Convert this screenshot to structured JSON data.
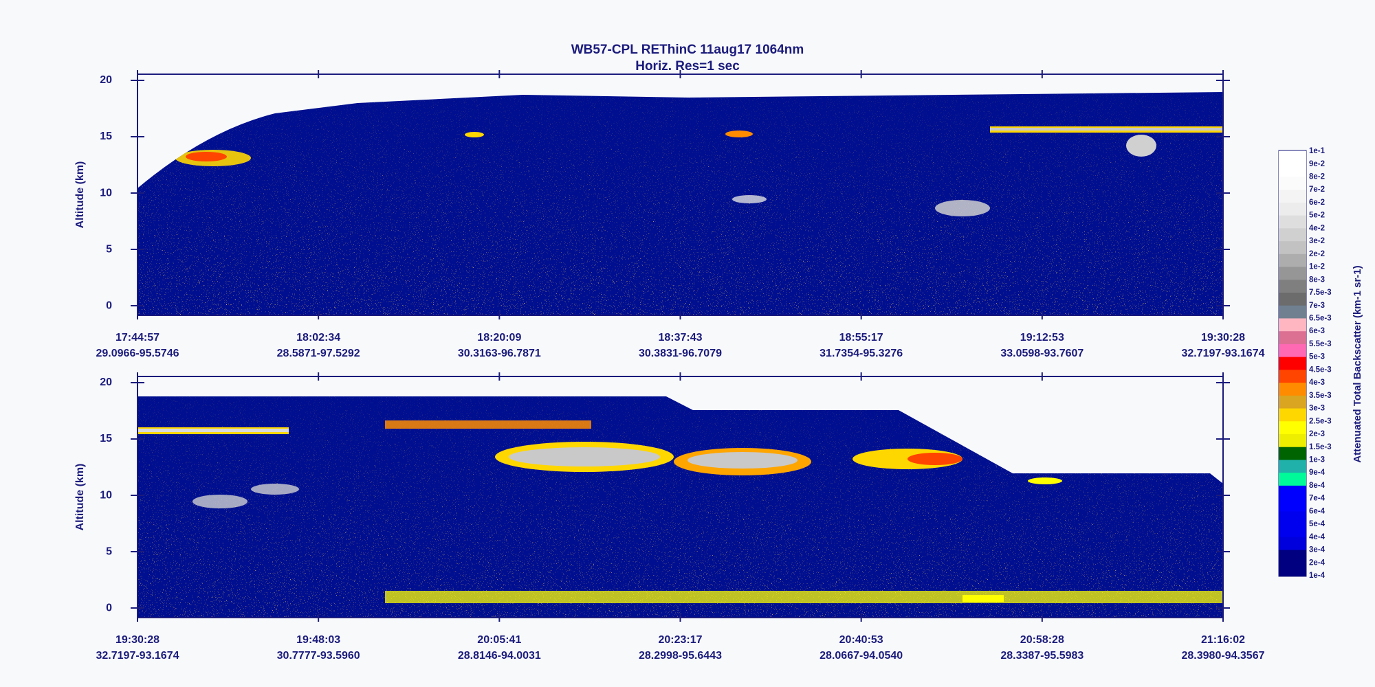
{
  "title": "WB57-CPL  REThinC  11aug17  1064nm",
  "subtitle": "Horiz. Res=1 sec",
  "panels": [
    {
      "y_label": "Altitude (km)",
      "ylim": [
        -0.85,
        20.55
      ],
      "yticks": [
        0,
        5,
        10,
        15,
        20
      ],
      "x_ticks": [
        {
          "time": "17:44:57",
          "position": "29.0966-95.5746"
        },
        {
          "time": "18:02:34",
          "position": "28.5871-97.5292"
        },
        {
          "time": "18:20:09",
          "position": "30.3163-96.7871"
        },
        {
          "time": "18:37:43",
          "position": "30.3831-96.7079"
        },
        {
          "time": "18:55:17",
          "position": "31.7354-95.3276"
        },
        {
          "time": "19:12:53",
          "position": "33.0598-93.7607"
        },
        {
          "time": "19:30:28",
          "position": "32.7197-93.1674"
        }
      ]
    },
    {
      "y_label": "Altitude (km)",
      "ylim": [
        -0.85,
        20.55
      ],
      "yticks": [
        0,
        5,
        10,
        15,
        20
      ],
      "x_ticks": [
        {
          "time": "19:30:28",
          "position": "32.7197-93.1674"
        },
        {
          "time": "19:48:03",
          "position": "30.7777-93.5960"
        },
        {
          "time": "20:05:41",
          "position": "28.8146-94.0031"
        },
        {
          "time": "20:23:17",
          "position": "28.2998-95.6443"
        },
        {
          "time": "20:40:53",
          "position": "28.0667-94.0540"
        },
        {
          "time": "20:58:28",
          "position": "28.3387-95.5983"
        },
        {
          "time": "21:16:02",
          "position": "28.3980-94.3567"
        }
      ]
    }
  ],
  "colorbar": {
    "label": "Attenuated Total Backscatter (km-1 sr-1)",
    "levels": [
      "1e-1",
      "9e-2",
      "8e-2",
      "7e-2",
      "6e-2",
      "5e-2",
      "4e-2",
      "3e-2",
      "2e-2",
      "1e-2",
      "8e-3",
      "7.5e-3",
      "7e-3",
      "6.5e-3",
      "6e-3",
      "5.5e-3",
      "5e-3",
      "4.5e-3",
      "4e-3",
      "3.5e-3",
      "3e-3",
      "2.5e-3",
      "2e-3",
      "1.5e-3",
      "1e-3",
      "9e-4",
      "8e-4",
      "7e-4",
      "6e-4",
      "5e-4",
      "4e-4",
      "3e-4",
      "2e-4",
      "1e-4"
    ],
    "colors": [
      "#ffffff",
      "#ffffff",
      "#fbfbfb",
      "#f4f4f4",
      "#ececec",
      "#dedede",
      "#d0d0d0",
      "#c2c2c2",
      "#adadad",
      "#969696",
      "#7f7f7f",
      "#6c6c6c",
      "#708090",
      "#ffb6c1",
      "#db7093",
      "#ff69b4",
      "#ff0000",
      "#ff4500",
      "#ff8c00",
      "#daa520",
      "#ffd700",
      "#ffff00",
      "#eeee00",
      "#006400",
      "#20b2aa",
      "#00fa9a",
      "#0000ff",
      "#0000ff",
      "#0000ee",
      "#0000ee",
      "#0000dd",
      "#000080",
      "#000080"
    ]
  }
}
